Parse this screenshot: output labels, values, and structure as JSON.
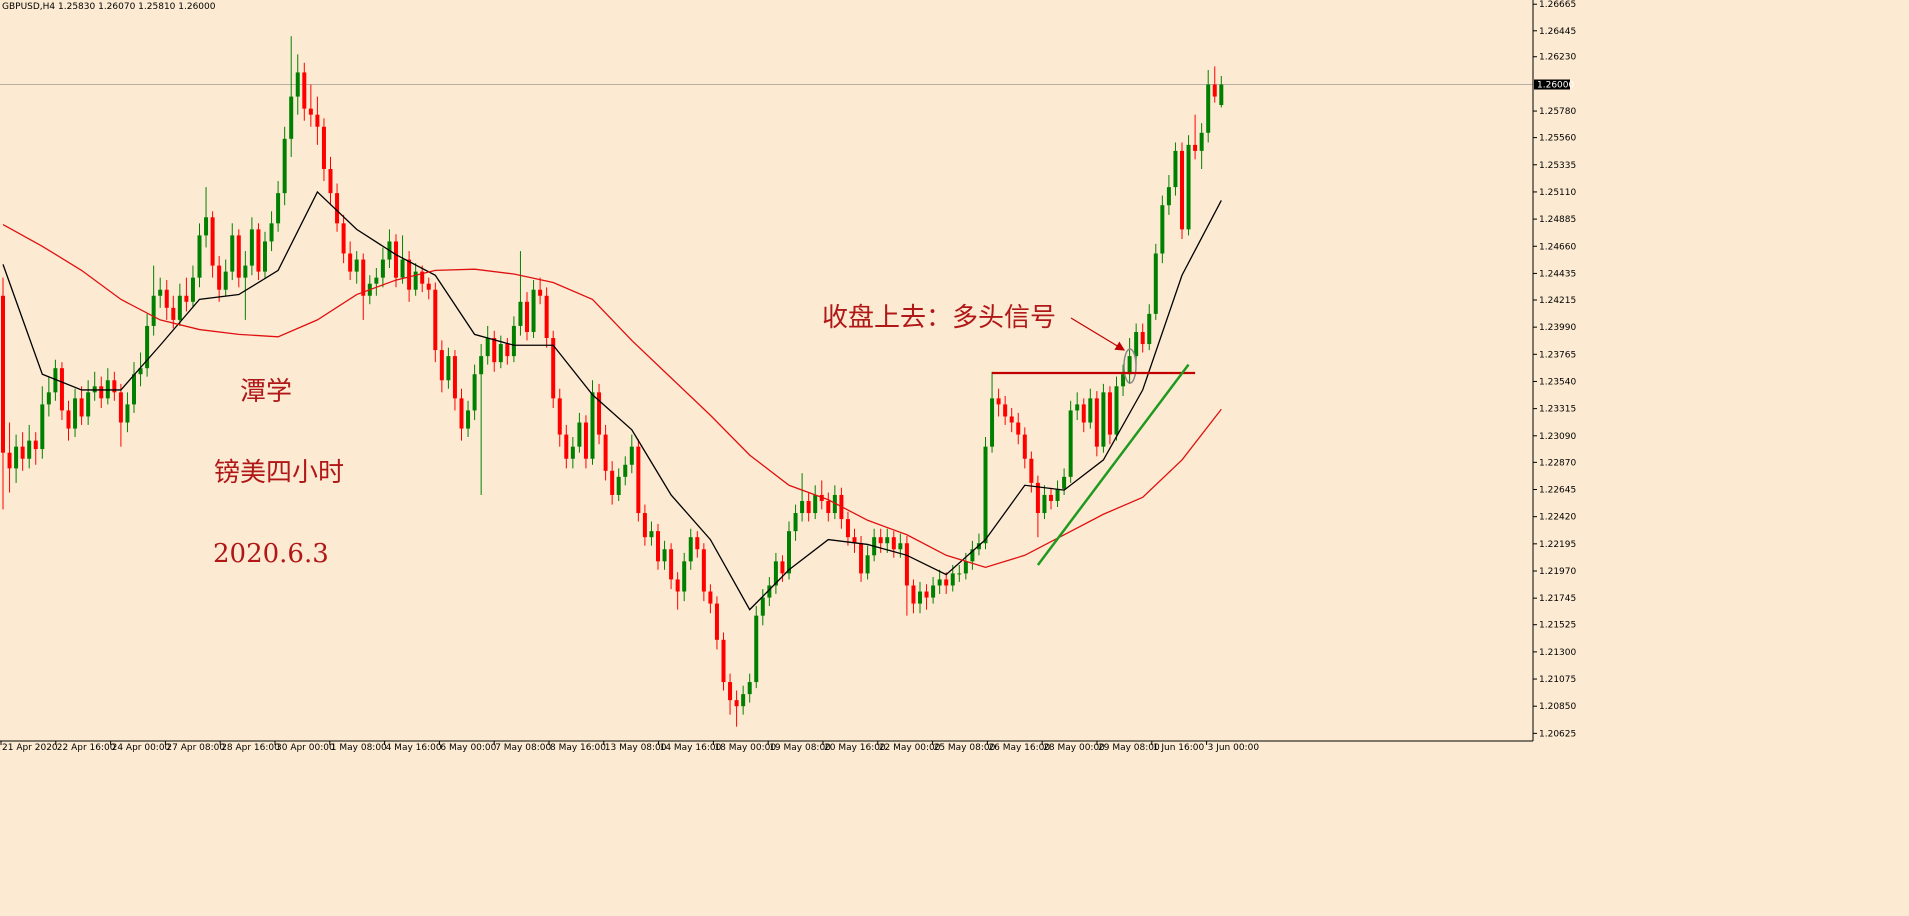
{
  "chart_data": {
    "type": "candlestick",
    "header": "GBPUSD,H4  1.25830 1.26070 1.25810 1.26000",
    "current_price": {
      "value": 1.26,
      "label": "1.26000"
    },
    "ylim": [
      1.2057,
      1.267
    ],
    "yticks": [
      1.26665,
      1.26445,
      {
        "value": 1.2623,
        "label": "1.26230"
      },
      {
        "value": 1.2578,
        "label": "1.25780"
      },
      {
        "value": 1.2556,
        "label": "1.25560"
      },
      1.25335,
      {
        "value": 1.2511,
        "label": "1.25110"
      },
      1.24885,
      {
        "value": 1.2466,
        "label": "1.24660"
      },
      1.24435,
      1.24215,
      {
        "value": 1.2399,
        "label": "1.23990"
      },
      1.23765,
      {
        "value": 1.2354,
        "label": "1.23540"
      },
      1.23315,
      {
        "value": 1.2309,
        "label": "1.23090"
      },
      {
        "value": 1.2287,
        "label": "1.22870"
      },
      1.22645,
      {
        "value": 1.2242,
        "label": "1.22420"
      },
      1.22195,
      {
        "value": 1.2197,
        "label": "1.21970"
      },
      1.21745,
      1.21525,
      {
        "value": 1.213,
        "label": "1.21300"
      },
      1.21075,
      {
        "value": 1.2085,
        "label": "1.20850"
      },
      1.20625
    ],
    "xlabels": [
      "21 Apr 2020",
      "22 Apr 16:00",
      "24 Apr 00:00",
      "27 Apr 08:00",
      "28 Apr 16:00",
      "30 Apr 00:00",
      "1 May 08:00",
      "4 May 16:00",
      "6 May 00:00",
      "7 May 08:00",
      "8 May 16:00",
      "13 May 08:00",
      "14 May 16:00",
      "18 May 00:00",
      "19 May 08:00",
      "20 May 16:00",
      "22 May 00:00",
      "25 May 08:00",
      "26 May 16:00",
      "28 May 00:00",
      "29 May 08:00",
      "1 Jun 16:00",
      "3 Jun 00:00"
    ],
    "colors": {
      "up": "#008000",
      "down": "#ff0000"
    },
    "candles": [
      [
        1.2425,
        1.244,
        1.2248,
        1.2295
      ],
      [
        1.2295,
        1.232,
        1.2262,
        1.2282
      ],
      [
        1.2282,
        1.231,
        1.227,
        1.23
      ],
      [
        1.23,
        1.2312,
        1.228,
        1.229
      ],
      [
        1.229,
        1.2318,
        1.2282,
        1.2305
      ],
      [
        1.2305,
        1.2312,
        1.2285,
        1.2298
      ],
      [
        1.2298,
        1.235,
        1.229,
        1.2335
      ],
      [
        1.2335,
        1.2358,
        1.2325,
        1.2345
      ],
      [
        1.2345,
        1.2372,
        1.2338,
        1.2365
      ],
      [
        1.2365,
        1.237,
        1.2322,
        1.233
      ],
      [
        1.233,
        1.2338,
        1.2305,
        1.2315
      ],
      [
        1.2315,
        1.2348,
        1.2308,
        1.234
      ],
      [
        1.234,
        1.235,
        1.2318,
        1.2325
      ],
      [
        1.2325,
        1.2355,
        1.2318,
        1.2345
      ],
      [
        1.2345,
        1.2362,
        1.2338,
        1.235
      ],
      [
        1.235,
        1.2358,
        1.2332,
        1.234
      ],
      [
        1.234,
        1.2365,
        1.2335,
        1.2355
      ],
      [
        1.2355,
        1.2362,
        1.2338,
        1.2345
      ],
      [
        1.2345,
        1.2352,
        1.23,
        1.232
      ],
      [
        1.232,
        1.2345,
        1.2312,
        1.2335
      ],
      [
        1.2335,
        1.237,
        1.2328,
        1.236
      ],
      [
        1.236,
        1.2378,
        1.235,
        1.2365
      ],
      [
        1.2365,
        1.241,
        1.2358,
        1.24
      ],
      [
        1.24,
        1.245,
        1.2392,
        1.2425
      ],
      [
        1.2425,
        1.244,
        1.2415,
        1.243
      ],
      [
        1.243,
        1.2438,
        1.2405,
        1.2415
      ],
      [
        1.2415,
        1.2425,
        1.2398,
        1.2405
      ],
      [
        1.2405,
        1.2435,
        1.24,
        1.2425
      ],
      [
        1.2425,
        1.244,
        1.2412,
        1.242
      ],
      [
        1.242,
        1.245,
        1.2415,
        1.244
      ],
      [
        1.244,
        1.2485,
        1.2432,
        1.2475
      ],
      [
        1.2475,
        1.2515,
        1.2465,
        1.249
      ],
      [
        1.249,
        1.2495,
        1.244,
        1.245
      ],
      [
        1.245,
        1.2458,
        1.242,
        1.243
      ],
      [
        1.243,
        1.2455,
        1.2425,
        1.2445
      ],
      [
        1.2445,
        1.2485,
        1.2438,
        1.2475
      ],
      [
        1.2475,
        1.248,
        1.2432,
        1.244
      ],
      [
        1.244,
        1.2462,
        1.2405,
        1.245
      ],
      [
        1.245,
        1.249,
        1.2442,
        1.248
      ],
      [
        1.248,
        1.2485,
        1.2438,
        1.2445
      ],
      [
        1.2445,
        1.2478,
        1.244,
        1.247
      ],
      [
        1.247,
        1.2495,
        1.2462,
        1.2485
      ],
      [
        1.2485,
        1.252,
        1.2478,
        1.251
      ],
      [
        1.251,
        1.2565,
        1.25,
        1.2555
      ],
      [
        1.2555,
        1.264,
        1.254,
        1.259
      ],
      [
        1.259,
        1.2625,
        1.2575,
        1.261
      ],
      [
        1.261,
        1.2618,
        1.257,
        1.258
      ],
      [
        1.258,
        1.26,
        1.2565,
        1.2575
      ],
      [
        1.2575,
        1.259,
        1.255,
        1.2565
      ],
      [
        1.2565,
        1.2572,
        1.252,
        1.253
      ],
      [
        1.253,
        1.254,
        1.25,
        1.251
      ],
      [
        1.251,
        1.2518,
        1.2478,
        1.2485
      ],
      [
        1.2485,
        1.2492,
        1.2452,
        1.246
      ],
      [
        1.246,
        1.247,
        1.2438,
        1.2445
      ],
      [
        1.2445,
        1.2462,
        1.2435,
        1.2455
      ],
      [
        1.2455,
        1.246,
        1.2405,
        1.2425
      ],
      [
        1.2425,
        1.2442,
        1.2418,
        1.2435
      ],
      [
        1.2435,
        1.2448,
        1.2425,
        1.244
      ],
      [
        1.244,
        1.2465,
        1.2432,
        1.2455
      ],
      [
        1.2455,
        1.248,
        1.2448,
        1.247
      ],
      [
        1.247,
        1.2476,
        1.2432,
        1.244
      ],
      [
        1.244,
        1.2475,
        1.2435,
        1.2455
      ],
      [
        1.2455,
        1.2462,
        1.242,
        1.243
      ],
      [
        1.243,
        1.2452,
        1.2425,
        1.2445
      ],
      [
        1.2445,
        1.245,
        1.2428,
        1.2435
      ],
      [
        1.2435,
        1.244,
        1.2422,
        1.243
      ],
      [
        1.243,
        1.2436,
        1.237,
        1.238
      ],
      [
        1.238,
        1.2388,
        1.2345,
        1.2355
      ],
      [
        1.2355,
        1.2382,
        1.2348,
        1.2375
      ],
      [
        1.2375,
        1.238,
        1.233,
        1.234
      ],
      [
        1.234,
        1.2348,
        1.2305,
        1.2315
      ],
      [
        1.2315,
        1.2338,
        1.2308,
        1.233
      ],
      [
        1.233,
        1.2368,
        1.2322,
        1.236
      ],
      [
        1.236,
        1.2385,
        1.226,
        1.2375
      ],
      [
        1.2375,
        1.24,
        1.2368,
        1.239
      ],
      [
        1.239,
        1.2396,
        1.2362,
        1.237
      ],
      [
        1.237,
        1.2392,
        1.2365,
        1.2385
      ],
      [
        1.2385,
        1.239,
        1.2368,
        1.2375
      ],
      [
        1.2375,
        1.2408,
        1.237,
        1.24
      ],
      [
        1.24,
        1.2462,
        1.2392,
        1.242
      ],
      [
        1.242,
        1.2428,
        1.2388,
        1.2395
      ],
      [
        1.2395,
        1.2438,
        1.239,
        1.243
      ],
      [
        1.243,
        1.244,
        1.2418,
        1.2425
      ],
      [
        1.2425,
        1.2432,
        1.2382,
        1.239
      ],
      [
        1.239,
        1.2396,
        1.2332,
        1.234
      ],
      [
        1.234,
        1.2348,
        1.23,
        1.231
      ],
      [
        1.231,
        1.2318,
        1.2282,
        1.229
      ],
      [
        1.229,
        1.2308,
        1.2282,
        1.23
      ],
      [
        1.23,
        1.2328,
        1.2295,
        1.232
      ],
      [
        1.232,
        1.2326,
        1.2282,
        1.229
      ],
      [
        1.229,
        1.2355,
        1.2285,
        1.2345
      ],
      [
        1.2345,
        1.2352,
        1.2302,
        1.231
      ],
      [
        1.231,
        1.2318,
        1.2272,
        1.228
      ],
      [
        1.228,
        1.2288,
        1.2252,
        1.226
      ],
      [
        1.226,
        1.2282,
        1.2255,
        1.2275
      ],
      [
        1.2275,
        1.2292,
        1.2268,
        1.2285
      ],
      [
        1.2285,
        1.231,
        1.2278,
        1.23
      ],
      [
        1.23,
        1.2306,
        1.2238,
        1.2245
      ],
      [
        1.2245,
        1.2252,
        1.2218,
        1.2225
      ],
      [
        1.2225,
        1.2238,
        1.2218,
        1.223
      ],
      [
        1.223,
        1.2236,
        1.2198,
        1.2205
      ],
      [
        1.2205,
        1.2222,
        1.2198,
        1.2215
      ],
      [
        1.2215,
        1.222,
        1.2182,
        1.219
      ],
      [
        1.219,
        1.2196,
        1.2165,
        1.218
      ],
      [
        1.218,
        1.2212,
        1.2172,
        1.2205
      ],
      [
        1.2205,
        1.2232,
        1.2198,
        1.2225
      ],
      [
        1.2225,
        1.223,
        1.2208,
        1.2215
      ],
      [
        1.2215,
        1.222,
        1.2172,
        1.218
      ],
      [
        1.218,
        1.2186,
        1.2162,
        1.217
      ],
      [
        1.217,
        1.2176,
        1.2132,
        1.214
      ],
      [
        1.214,
        1.2146,
        1.2098,
        1.2105
      ],
      [
        1.2105,
        1.2112,
        1.2078,
        1.209
      ],
      [
        1.209,
        1.2098,
        1.2068,
        1.2085
      ],
      [
        1.2085,
        1.2102,
        1.2078,
        1.2095
      ],
      [
        1.2095,
        1.2112,
        1.2088,
        1.2105
      ],
      [
        1.2105,
        1.2168,
        1.21,
        1.216
      ],
      [
        1.216,
        1.2182,
        1.2152,
        1.2175
      ],
      [
        1.2175,
        1.2192,
        1.2168,
        1.2185
      ],
      [
        1.2185,
        1.2212,
        1.2178,
        1.2205
      ],
      [
        1.2205,
        1.221,
        1.2188,
        1.2195
      ],
      [
        1.2195,
        1.2238,
        1.219,
        1.223
      ],
      [
        1.223,
        1.2252,
        1.2222,
        1.2245
      ],
      [
        1.2245,
        1.2278,
        1.2238,
        1.2255
      ],
      [
        1.2255,
        1.2262,
        1.2238,
        1.2245
      ],
      [
        1.2245,
        1.2268,
        1.224,
        1.226
      ],
      [
        1.226,
        1.2272,
        1.2248,
        1.2255
      ],
      [
        1.2255,
        1.2262,
        1.2238,
        1.2245
      ],
      [
        1.2245,
        1.2268,
        1.224,
        1.226
      ],
      [
        1.226,
        1.2266,
        1.2232,
        1.224
      ],
      [
        1.224,
        1.2246,
        1.2218,
        1.2225
      ],
      [
        1.2225,
        1.2232,
        1.2212,
        1.222
      ],
      [
        1.222,
        1.2226,
        1.2188,
        1.2195
      ],
      [
        1.2195,
        1.2218,
        1.219,
        1.221
      ],
      [
        1.221,
        1.2232,
        1.2205,
        1.2225
      ],
      [
        1.2225,
        1.2232,
        1.2212,
        1.222
      ],
      [
        1.222,
        1.2232,
        1.2212,
        1.2225
      ],
      [
        1.2225,
        1.223,
        1.2208,
        1.2215
      ],
      [
        1.2215,
        1.2228,
        1.2208,
        1.222
      ],
      [
        1.222,
        1.2226,
        1.216,
        1.2185
      ],
      [
        1.2185,
        1.219,
        1.2162,
        1.217
      ],
      [
        1.217,
        1.2188,
        1.2162,
        1.218
      ],
      [
        1.218,
        1.2186,
        1.2165,
        1.2175
      ],
      [
        1.2175,
        1.2192,
        1.217,
        1.2185
      ],
      [
        1.2185,
        1.2198,
        1.2178,
        1.219
      ],
      [
        1.219,
        1.2196,
        1.2178,
        1.2185
      ],
      [
        1.2185,
        1.2202,
        1.218,
        1.2195
      ],
      [
        1.2195,
        1.2202,
        1.2188,
        1.2195
      ],
      [
        1.2195,
        1.2212,
        1.219,
        1.2205
      ],
      [
        1.2205,
        1.2222,
        1.2198,
        1.2215
      ],
      [
        1.2215,
        1.2228,
        1.221,
        1.222
      ],
      [
        1.222,
        1.2308,
        1.2215,
        1.23
      ],
      [
        1.23,
        1.2362,
        1.2295,
        1.234
      ],
      [
        1.234,
        1.2348,
        1.2325,
        1.2335
      ],
      [
        1.2335,
        1.2342,
        1.2318,
        1.2325
      ],
      [
        1.2325,
        1.2332,
        1.2312,
        1.232
      ],
      [
        1.232,
        1.2328,
        1.2302,
        1.231
      ],
      [
        1.231,
        1.2316,
        1.2282,
        1.229
      ],
      [
        1.229,
        1.2296,
        1.2262,
        1.227
      ],
      [
        1.227,
        1.2276,
        1.2225,
        1.2245
      ],
      [
        1.2245,
        1.2268,
        1.224,
        1.226
      ],
      [
        1.226,
        1.2266,
        1.2248,
        1.2255
      ],
      [
        1.2255,
        1.2272,
        1.225,
        1.2265
      ],
      [
        1.2265,
        1.2282,
        1.226,
        1.2275
      ],
      [
        1.2275,
        1.2338,
        1.227,
        1.233
      ],
      [
        1.233,
        1.2345,
        1.2322,
        1.2335
      ],
      [
        1.2335,
        1.234,
        1.2312,
        1.232
      ],
      [
        1.232,
        1.2348,
        1.2315,
        1.234
      ],
      [
        1.234,
        1.2346,
        1.2292,
        1.23
      ],
      [
        1.23,
        1.2352,
        1.2295,
        1.2345
      ],
      [
        1.2345,
        1.235,
        1.2302,
        1.231
      ],
      [
        1.231,
        1.2358,
        1.2305,
        1.235
      ],
      [
        1.235,
        1.2368,
        1.2342,
        1.236
      ],
      [
        1.236,
        1.239,
        1.2352,
        1.2375
      ],
      [
        1.2375,
        1.2402,
        1.2368,
        1.2395
      ],
      [
        1.2395,
        1.2402,
        1.2378,
        1.2385
      ],
      [
        1.2385,
        1.2418,
        1.238,
        1.241
      ],
      [
        1.241,
        1.2468,
        1.2405,
        1.246
      ],
      [
        1.246,
        1.2508,
        1.2452,
        1.25
      ],
      [
        1.25,
        1.2525,
        1.2492,
        1.2515
      ],
      [
        1.2515,
        1.2552,
        1.2508,
        1.2545
      ],
      [
        1.2545,
        1.2552,
        1.2472,
        1.248
      ],
      [
        1.248,
        1.2558,
        1.2475,
        1.255
      ],
      [
        1.255,
        1.2575,
        1.2538,
        1.2545
      ],
      [
        1.2545,
        1.2568,
        1.253,
        1.256
      ],
      [
        1.256,
        1.2612,
        1.2552,
        1.26
      ],
      [
        1.26,
        1.2615,
        1.2585,
        1.259
      ],
      [
        1.2583,
        1.2607,
        1.2581,
        1.26
      ]
    ],
    "lines": [
      {
        "color": "#000000",
        "x": [
          0,
          6,
          12,
          18,
          24,
          30,
          36,
          42,
          48,
          54,
          60,
          66,
          72,
          78,
          84,
          90,
          96,
          102,
          108,
          114,
          120,
          126,
          132,
          138,
          144,
          150,
          156,
          162,
          168,
          174,
          180,
          186
        ],
        "values": [
          1.2451,
          1.236,
          1.2347,
          1.2347,
          1.2384,
          1.2422,
          1.2426,
          1.2446,
          1.2511,
          1.248,
          1.2459,
          1.2442,
          1.2393,
          1.2384,
          1.2384,
          1.2343,
          1.2314,
          1.226,
          1.2223,
          1.2165,
          1.2198,
          1.2223,
          1.2219,
          1.221,
          1.2194,
          1.2223,
          1.2268,
          1.2264,
          1.2289,
          1.2347,
          1.2442,
          1.2504
        ]
      },
      {
        "color": "#e01010",
        "x": [
          0,
          6,
          12,
          18,
          24,
          30,
          36,
          42,
          48,
          54,
          60,
          66,
          72,
          78,
          84,
          90,
          96,
          102,
          108,
          114,
          120,
          126,
          132,
          138,
          144,
          150,
          156,
          162,
          168,
          174,
          180,
          186
        ],
        "values": [
          1.2484,
          1.2466,
          1.2446,
          1.2422,
          1.2405,
          1.2397,
          1.2393,
          1.2391,
          1.2405,
          1.2426,
          1.2438,
          1.2446,
          1.2447,
          1.2443,
          1.2436,
          1.2422,
          1.2388,
          1.2357,
          1.2326,
          1.2293,
          1.2268,
          1.2256,
          1.2239,
          1.2227,
          1.221,
          1.22,
          1.221,
          1.2227,
          1.2244,
          1.2258,
          1.2289,
          1.2331
        ]
      }
    ],
    "level": {
      "value": 1.2361,
      "x": [
        151,
        182
      ],
      "color": "#c00000"
    },
    "trendline": {
      "x": [
        158,
        181
      ],
      "values": [
        1.2202,
        1.2368
      ],
      "color": "#1f9a1f"
    },
    "annotations": [
      "收盘上去：多头信号",
      "潭学",
      "镑美四小时",
      "2020.6.3"
    ]
  }
}
